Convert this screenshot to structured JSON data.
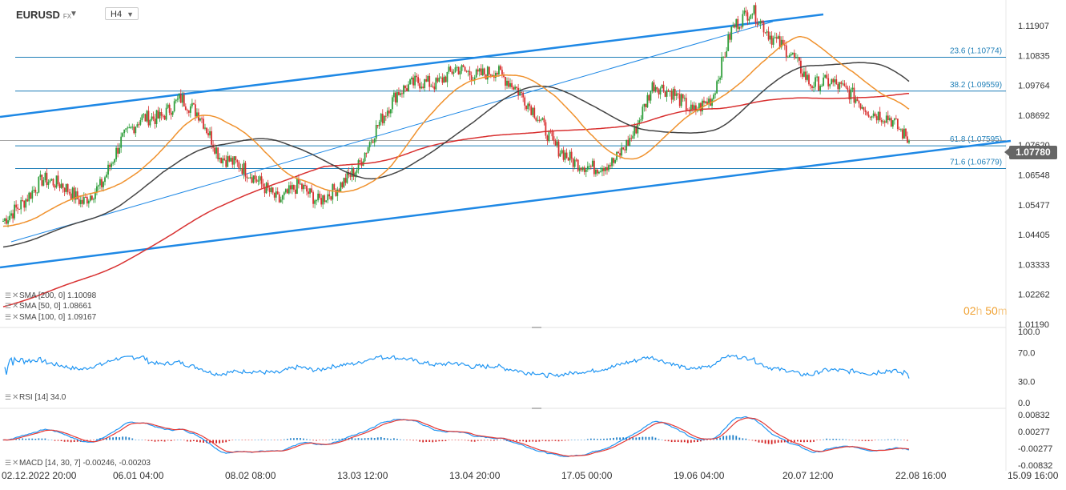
{
  "header": {
    "symbol": "EURUSD",
    "market": "FX",
    "timeframe": "H4"
  },
  "price_badge": "1.07780",
  "countdown": {
    "hours": "02",
    "h_unit": "h",
    "minutes": "50",
    "m_unit": "m"
  },
  "legends": {
    "sma200": "SMA [200, 0] 1.10098",
    "sma50": "SMA [50, 0] 1.08661",
    "sma100": "SMA [100, 0] 1.09167",
    "rsi": "RSI [14] 34.0",
    "macd": "MACD [14, 30, 7] -0.00246, -0.00203"
  },
  "colors": {
    "candle_up": "#2e9e3a",
    "candle_down": "#d93030",
    "sma50": "#f0922e",
    "sma100": "#444444",
    "sma200": "#d83030",
    "trendline": "#1e88e5",
    "fib": "#1f7fb8",
    "rsi": "#2196f3",
    "macd_line": "#2196f3",
    "macd_signal": "#e53935",
    "hist_up": "#1e7fc8",
    "hist_down": "#d32020"
  },
  "chart_data": [
    {
      "type": "candlestick",
      "panel": "price",
      "symbol": "EURUSD",
      "timeframe": "H4",
      "ylim": [
        1.011,
        1.126
      ],
      "y_ticks": [
        "1.11907",
        "1.10835",
        "1.09764",
        "1.08692",
        "1.07620",
        "1.06548",
        "1.05477",
        "1.04405",
        "1.03333",
        "1.02262",
        "1.01190"
      ],
      "x_ticks": [
        "02.12.2022 20:00",
        "06.01 04:00",
        "08.02 08:00",
        "13.03 12:00",
        "13.04 20:00",
        "17.05 00:00",
        "19.06 04:00",
        "20.07 12:00",
        "22.08 16:00",
        "15.09 16:00"
      ],
      "last_price": 1.0778,
      "price_anchors": [
        1.049,
        1.0555,
        1.064,
        1.062,
        1.0555,
        1.062,
        1.078,
        1.086,
        1.086,
        1.093,
        1.087,
        1.072,
        1.069,
        1.063,
        1.056,
        1.062,
        1.056,
        1.061,
        1.068,
        1.083,
        1.095,
        1.099,
        1.098,
        1.104,
        1.101,
        1.103,
        1.097,
        1.088,
        1.076,
        1.07,
        1.068,
        1.07,
        1.08,
        1.098,
        1.095,
        1.088,
        1.093,
        1.118,
        1.125,
        1.115,
        1.109,
        1.098,
        1.099,
        1.095,
        1.088,
        1.086,
        1.0778
      ],
      "series": [
        {
          "name": "SMA 200",
          "last": 1.10098
        },
        {
          "name": "SMA 50",
          "last": 1.08661
        },
        {
          "name": "SMA 100",
          "last": 1.09167
        }
      ],
      "fib_levels": [
        {
          "label": "23.6 (1.10774)",
          "value": 1.10774
        },
        {
          "label": "38.2 (1.09559)",
          "value": 1.09559
        },
        {
          "label": "61.8 (1.07595)",
          "value": 1.07595
        },
        {
          "label": "71.6 (1.06779)",
          "value": 1.06779
        }
      ]
    },
    {
      "type": "line",
      "panel": "rsi",
      "ylim": [
        0,
        100
      ],
      "y_ticks": [
        "100.0",
        "70.0",
        "30.0",
        "0.0"
      ],
      "last": 34.0
    },
    {
      "type": "line",
      "panel": "macd",
      "ylim": [
        -0.00832,
        0.00832
      ],
      "y_ticks": [
        "0.00832",
        "0.00277",
        "-0.00277",
        "-0.00832"
      ],
      "series": [
        {
          "name": "MACD",
          "last": -0.00246
        },
        {
          "name": "Signal",
          "last": -0.00203
        }
      ]
    }
  ]
}
